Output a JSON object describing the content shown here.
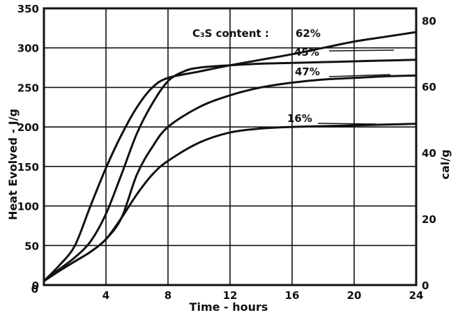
{
  "chart_data": {
    "type": "line",
    "title": "",
    "xlabel": "Time - hours",
    "ylabel": "Heat Evolved - J/g",
    "y2label": "cal/g",
    "xlim": [
      0,
      24
    ],
    "ylim": [
      0,
      350
    ],
    "y2lim": [
      0,
      83.65
    ],
    "grid": true,
    "x_ticks": [
      "4",
      "8",
      "12",
      "16",
      "20",
      "24"
    ],
    "x_origin_label": "0",
    "y_ticks": [
      "0",
      "50",
      "100",
      "150",
      "200",
      "250",
      "300",
      "350"
    ],
    "y2_ticks": [
      "0",
      "20",
      "40",
      "60",
      "80"
    ],
    "annotation_header": "C₃S content :",
    "series": [
      {
        "name": "62%",
        "x": [
          0,
          1,
          2,
          3,
          4,
          5,
          6,
          7,
          8,
          10,
          12,
          14,
          16,
          18,
          20,
          22,
          24
        ],
        "y": [
          5,
          25,
          50,
          100,
          148,
          190,
          225,
          250,
          262,
          270,
          278,
          285,
          292,
          300,
          308,
          314,
          320
        ]
      },
      {
        "name": "45%",
        "x": [
          0,
          1,
          2,
          3,
          4,
          5,
          6,
          7,
          8,
          9,
          10,
          12,
          14,
          16,
          18,
          20,
          22,
          24
        ],
        "y": [
          5,
          20,
          35,
          55,
          90,
          140,
          192,
          230,
          258,
          270,
          275,
          278,
          280,
          281,
          282,
          283,
          284,
          285
        ]
      },
      {
        "name": "47%",
        "x": [
          0,
          1,
          2,
          3,
          4,
          5,
          6,
          7,
          8,
          10,
          12,
          14,
          16,
          18,
          20,
          22,
          24
        ],
        "y": [
          5,
          18,
          30,
          42,
          58,
          85,
          140,
          175,
          200,
          225,
          240,
          250,
          256,
          260,
          262,
          264,
          265
        ]
      },
      {
        "name": "16%",
        "x": [
          0,
          1,
          2,
          3,
          4,
          5,
          6,
          7,
          8,
          10,
          12,
          14,
          16,
          18,
          20,
          22,
          24
        ],
        "y": [
          5,
          18,
          30,
          42,
          58,
          85,
          115,
          140,
          157,
          180,
          193,
          198,
          200,
          201,
          202,
          203,
          204
        ]
      }
    ]
  }
}
